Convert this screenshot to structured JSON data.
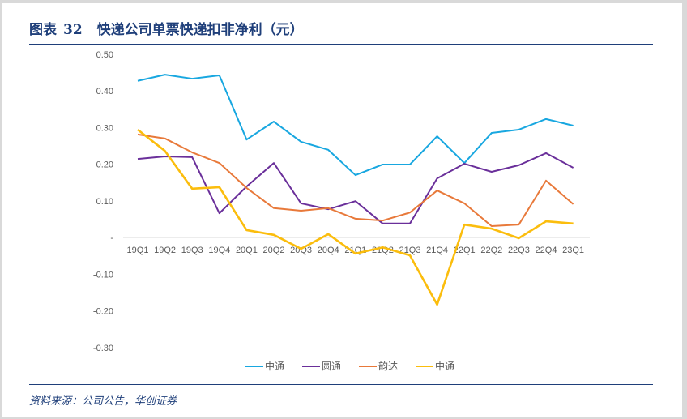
{
  "header": {
    "figure_label": "图表",
    "figure_number": "32",
    "title": "快递公司单票快递扣非净利（元）"
  },
  "source": "资料来源：公司公告，华创证券",
  "chart_data": {
    "type": "line",
    "title": "快递公司单票快递扣非净利（元）",
    "xlabel": "",
    "ylabel": "",
    "categories": [
      "19Q1",
      "19Q2",
      "19Q3",
      "19Q4",
      "20Q1",
      "20Q2",
      "20Q3",
      "20Q4",
      "21Q1",
      "21Q2",
      "21Q3",
      "21Q4",
      "22Q1",
      "22Q2",
      "22Q3",
      "22Q4",
      "23Q1"
    ],
    "ylim": [
      -0.3,
      0.5
    ],
    "yticks": [
      0.5,
      0.4,
      0.3,
      0.2,
      0.1,
      0,
      -0.1,
      -0.2,
      -0.3
    ],
    "ytick_labels": [
      "0.50",
      "0.40",
      "0.30",
      "0.20",
      "0.10",
      "-",
      "-0.10",
      "-0.20",
      "-0.30"
    ],
    "grid": false,
    "legend_position": "bottom",
    "series": [
      {
        "name": "中通",
        "color": "#18a7e0",
        "values": [
          0.427,
          0.444,
          0.433,
          0.442,
          0.267,
          0.316,
          0.261,
          0.239,
          0.17,
          0.199,
          0.199,
          0.276,
          0.203,
          0.285,
          0.294,
          0.323,
          0.305
        ]
      },
      {
        "name": "圆通",
        "color": "#6a2f9a",
        "values": [
          0.214,
          0.221,
          0.219,
          0.066,
          0.139,
          0.203,
          0.093,
          0.077,
          0.099,
          0.038,
          0.038,
          0.161,
          0.201,
          0.179,
          0.197,
          0.23,
          0.19
        ]
      },
      {
        "name": "韵达",
        "color": "#e8793a",
        "values": [
          0.281,
          0.27,
          0.232,
          0.203,
          0.135,
          0.08,
          0.073,
          0.08,
          0.051,
          0.046,
          0.068,
          0.128,
          0.093,
          0.031,
          0.035,
          0.155,
          0.091
        ]
      },
      {
        "name": "中通",
        "color": "#fbbd0d",
        "values": [
          0.294,
          0.236,
          0.133,
          0.137,
          0.02,
          0.007,
          -0.031,
          0.009,
          -0.044,
          -0.027,
          -0.049,
          -0.183,
          0.035,
          0.024,
          -0.002,
          0.044,
          0.038
        ]
      }
    ]
  }
}
